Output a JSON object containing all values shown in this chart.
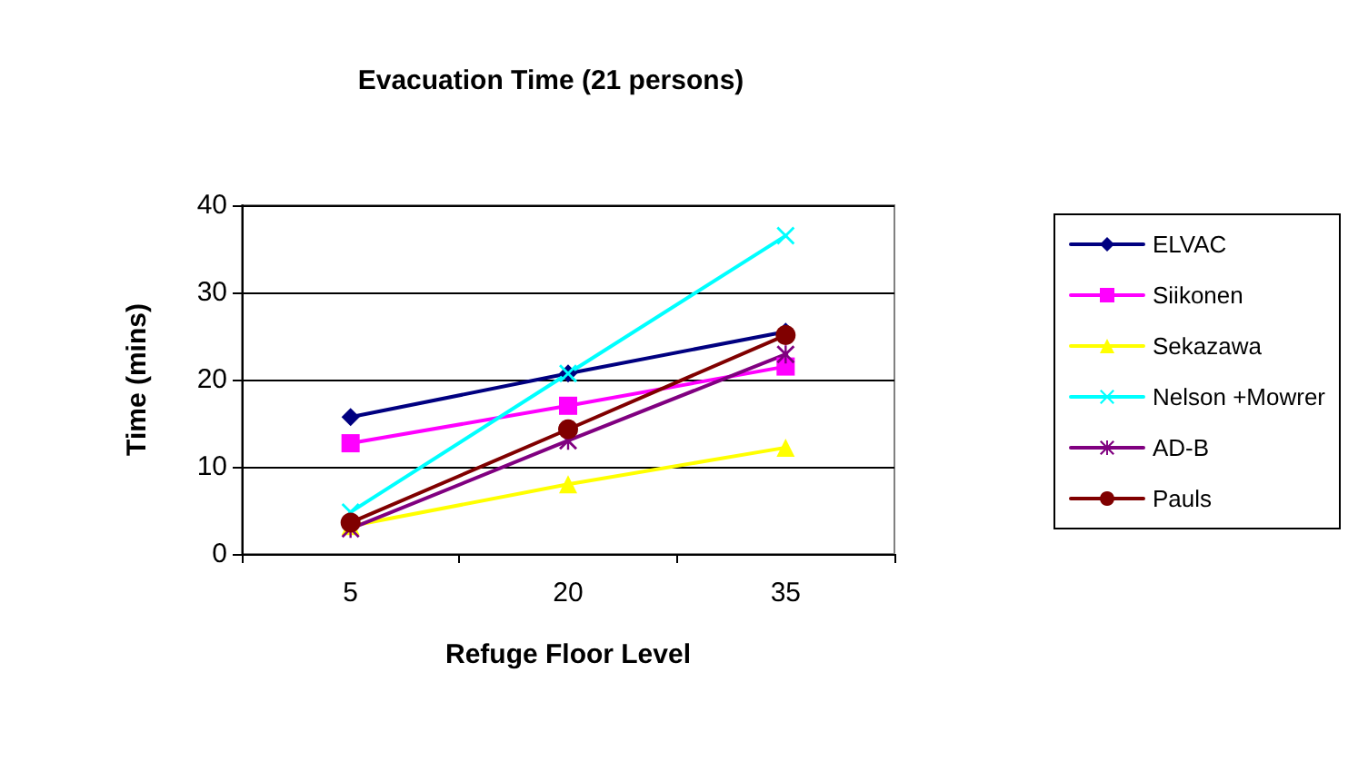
{
  "chart_data": {
    "type": "line",
    "title": "Evacuation Time (21 persons)",
    "xlabel": "Refuge Floor Level",
    "ylabel": "Time (mins)",
    "categories": [
      "5",
      "20",
      "35"
    ],
    "series": [
      {
        "name": "ELVAC",
        "color": "#000080",
        "marker": "diamond",
        "values": [
          15.7,
          20.7,
          25.5
        ]
      },
      {
        "name": "Siikonen",
        "color": "#ff00ff",
        "marker": "square",
        "values": [
          12.7,
          17,
          21.5
        ]
      },
      {
        "name": "Sekazawa",
        "color": "#ffff00",
        "marker": "triangle",
        "values": [
          3.2,
          8,
          12.2
        ]
      },
      {
        "name": "Nelson +Mowrer",
        "color": "#00ffff",
        "marker": "cross",
        "values": [
          4.8,
          20.7,
          36.5
        ]
      },
      {
        "name": "AD-B",
        "color": "#800080",
        "marker": "star",
        "values": [
          2.9,
          13,
          22.9
        ]
      },
      {
        "name": "Pauls",
        "color": "#800000",
        "marker": "circle",
        "values": [
          3.6,
          14.3,
          25.1
        ]
      }
    ],
    "ylim": [
      0,
      40
    ],
    "yticks": [
      0,
      10,
      20,
      30,
      40
    ],
    "grid": "y",
    "legend": "right",
    "line_style": "solid"
  }
}
